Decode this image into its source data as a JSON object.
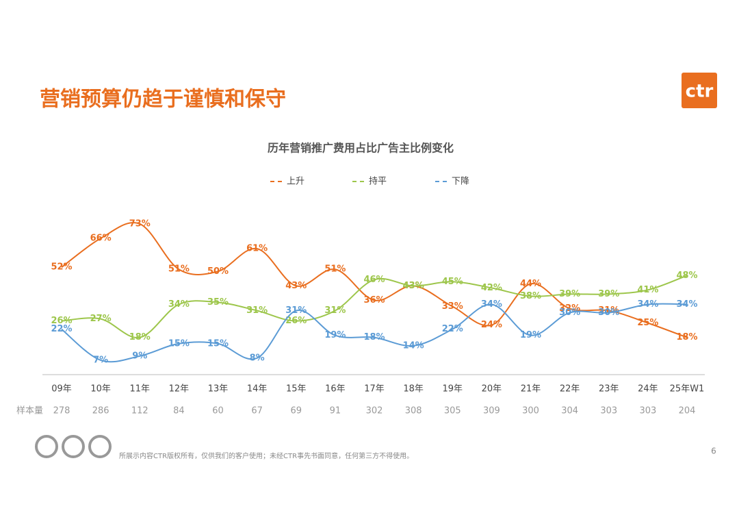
{
  "header": {
    "title": "营销预算仍趋于谨慎和保守",
    "logo": "ctr"
  },
  "chart_data": {
    "type": "line",
    "title": "历年营销推广费用占比广告主比例变化",
    "categories": [
      "09年",
      "10年",
      "11年",
      "12年",
      "13年",
      "14年",
      "15年",
      "16年",
      "17年",
      "18年",
      "19年",
      "20年",
      "21年",
      "22年",
      "23年",
      "24年",
      "25年W1"
    ],
    "series": [
      {
        "name": "上升",
        "color": "#e96e1f",
        "values": [
          52,
          66,
          73,
          51,
          50,
          61,
          43,
          51,
          36,
          43,
          33,
          24,
          44,
          32,
          31,
          25,
          18
        ],
        "value_labels": [
          "52%",
          "66%",
          "73%",
          "51%",
          "50%",
          "61%",
          "43%",
          "51%",
          "36%",
          "43%",
          "33%",
          "24%",
          "44%",
          "32%",
          "31%",
          "25%",
          "18%"
        ]
      },
      {
        "name": "持平",
        "color": "#9dc64b",
        "values": [
          26,
          27,
          18,
          34,
          35,
          31,
          26,
          31,
          46,
          43,
          45,
          42,
          38,
          39,
          39,
          41,
          48
        ],
        "value_labels": [
          "26%",
          "27%",
          "18%",
          "34%",
          "35%",
          "31%",
          "26%",
          "31%",
          "46%",
          "43%",
          "45%",
          "42%",
          "38%",
          "39%",
          "39%",
          "41%",
          "48%"
        ]
      },
      {
        "name": "下降",
        "color": "#5b9bd5",
        "values": [
          22,
          7,
          9,
          15,
          15,
          8,
          31,
          19,
          18,
          14,
          22,
          34,
          19,
          30,
          30,
          34,
          34
        ],
        "value_labels": [
          "22%",
          "7%",
          "9%",
          "15%",
          "15%",
          "8%",
          "31%",
          "19%",
          "18%",
          "14%",
          "22%",
          "34%",
          "19%",
          "30%",
          "30%",
          "34%",
          "34%"
        ]
      }
    ],
    "sample_label": "样本量",
    "sample_sizes": [
      278,
      286,
      112,
      84,
      60,
      67,
      69,
      91,
      302,
      308,
      305,
      309,
      300,
      304,
      303,
      303,
      204
    ]
  },
  "footer": {
    "text": "所展示内容CTR版权所有，仅供我们的客户使用；未经CTR事先书面同意，任何第三方不得使用。",
    "page_number": "6"
  }
}
